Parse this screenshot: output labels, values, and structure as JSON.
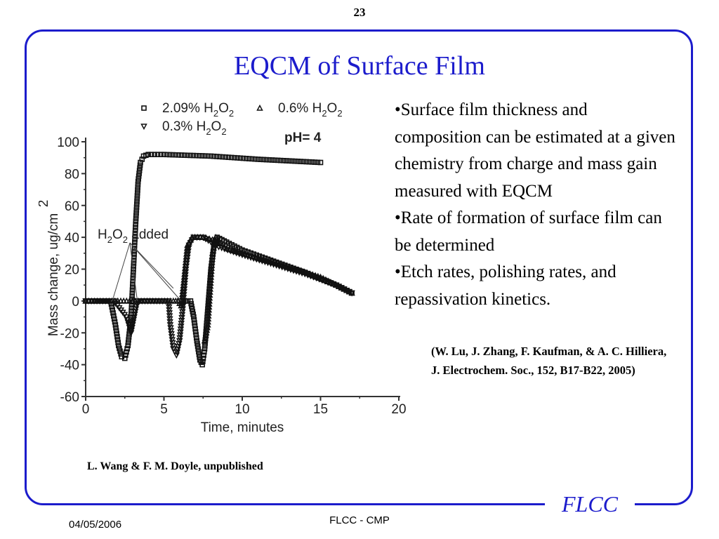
{
  "slide": {
    "page_number": "23",
    "title": "EQCM of Surface Film",
    "bullets": [
      "•Surface film thickness and composition can be estimated at a given chemistry from charge and mass gain measured with EQCM",
      "•Rate of formation of surface film can be determined",
      "•Etch rates, polishing rates, and repassivation kinetics."
    ],
    "citation": "(W. Lu, J. Zhang, F. Kaufman, & A. C. Hilliera, J. Electrochem. Soc., 152, B17-B22, 2005)",
    "credit": "L. Wang & F. M. Doyle, unpublished",
    "brand": "FLCC",
    "footer_date": "04/05/2006",
    "footer_center": "FLCC - CMP"
  },
  "chart_data": {
    "type": "scatter",
    "xlabel": "Time, minutes",
    "ylabel": "Mass change, ug/cm",
    "ylabel_superscript": "2",
    "xlim": [
      0,
      20
    ],
    "ylim": [
      -60,
      100
    ],
    "xticks": [
      "0",
      "5",
      "10",
      "15",
      "20"
    ],
    "yticks": [
      "100",
      "80",
      "60",
      "40",
      "20",
      "0",
      "-20",
      "-40",
      "-60"
    ],
    "legend": [
      {
        "marker": "square",
        "text": "2.09% H",
        "sub1": "2",
        "mid": "O",
        "sub2": "2"
      },
      {
        "marker": "triangle-up",
        "text": "0.6% H",
        "sub1": "2",
        "mid": "O",
        "sub2": "2"
      },
      {
        "marker": "triangle-down",
        "text": "0.3% H",
        "sub1": "2",
        "mid": "O",
        "sub2": "2"
      }
    ],
    "ph_label": "pH= 4",
    "annotation": {
      "H": "H",
      "sub1": "2",
      "O": "O",
      "sub2": "2",
      "rest": " added"
    },
    "annotation_targets": [
      [
        1.7,
        0
      ],
      [
        3.3,
        0
      ],
      [
        5.6,
        8
      ],
      [
        6.1,
        0
      ]
    ],
    "series": [
      {
        "marker": "square",
        "values": [
          [
            0,
            0
          ],
          [
            1.6,
            0
          ],
          [
            1.9,
            -15
          ],
          [
            2.1,
            -28
          ],
          [
            2.3,
            -35
          ],
          [
            2.5,
            -36
          ],
          [
            2.7,
            -28
          ],
          [
            2.9,
            -10
          ],
          [
            3.05,
            20
          ],
          [
            3.2,
            50
          ],
          [
            3.35,
            75
          ],
          [
            3.5,
            87
          ],
          [
            3.7,
            91
          ],
          [
            4.0,
            92
          ],
          [
            5,
            92
          ],
          [
            8,
            91
          ],
          [
            11,
            89
          ],
          [
            13,
            88
          ],
          [
            15,
            87
          ]
        ]
      },
      {
        "marker": "triangle-up",
        "values": [
          [
            0,
            0
          ],
          [
            5.6,
            0
          ],
          [
            5.9,
            0
          ],
          [
            6.1,
            -3
          ],
          [
            6.3,
            15
          ],
          [
            6.5,
            35
          ],
          [
            6.8,
            40
          ],
          [
            7.5,
            40
          ],
          [
            8.3,
            38
          ],
          [
            9,
            33
          ],
          [
            10,
            30
          ],
          [
            11,
            27
          ],
          [
            12,
            24
          ],
          [
            13,
            21
          ],
          [
            14,
            18
          ],
          [
            15,
            15
          ],
          [
            16,
            10
          ],
          [
            17,
            5
          ]
        ]
      },
      {
        "marker": "triangle-down",
        "values": [
          [
            0,
            0
          ],
          [
            1.8,
            0
          ],
          [
            2.6,
            -10
          ],
          [
            2.9,
            -20
          ],
          [
            3.1,
            -10
          ],
          [
            3.3,
            0
          ],
          [
            3.6,
            0
          ],
          [
            5.3,
            0
          ],
          [
            5.4,
            -15
          ],
          [
            5.6,
            -30
          ],
          [
            5.8,
            -34
          ],
          [
            6.0,
            -25
          ],
          [
            6.2,
            -5
          ],
          [
            6.4,
            20
          ],
          [
            6.6,
            35
          ],
          [
            6.9,
            40
          ],
          [
            7.5,
            40
          ],
          [
            8.5,
            34
          ],
          [
            10,
            29
          ],
          [
            12,
            23
          ],
          [
            14,
            17
          ],
          [
            16,
            10
          ],
          [
            17,
            5
          ]
        ]
      },
      {
        "marker": "square",
        "values": [
          [
            6.0,
            0
          ],
          [
            6.7,
            0
          ],
          [
            6.9,
            -10
          ],
          [
            7.1,
            -25
          ],
          [
            7.3,
            -37
          ],
          [
            7.45,
            -40
          ],
          [
            7.6,
            -30
          ],
          [
            7.8,
            -5
          ],
          [
            8.0,
            20
          ],
          [
            8.2,
            35
          ],
          [
            8.4,
            40
          ],
          [
            9,
            37
          ],
          [
            10,
            32
          ],
          [
            12,
            25
          ],
          [
            14,
            18
          ],
          [
            16,
            10
          ],
          [
            17,
            5
          ]
        ]
      },
      {
        "marker": "triangle-up",
        "values": [
          [
            7.6,
            -25
          ],
          [
            7.8,
            -15
          ],
          [
            7.9,
            0
          ],
          [
            8.0,
            15
          ],
          [
            8.1,
            30
          ],
          [
            8.3,
            40
          ]
        ]
      }
    ]
  }
}
